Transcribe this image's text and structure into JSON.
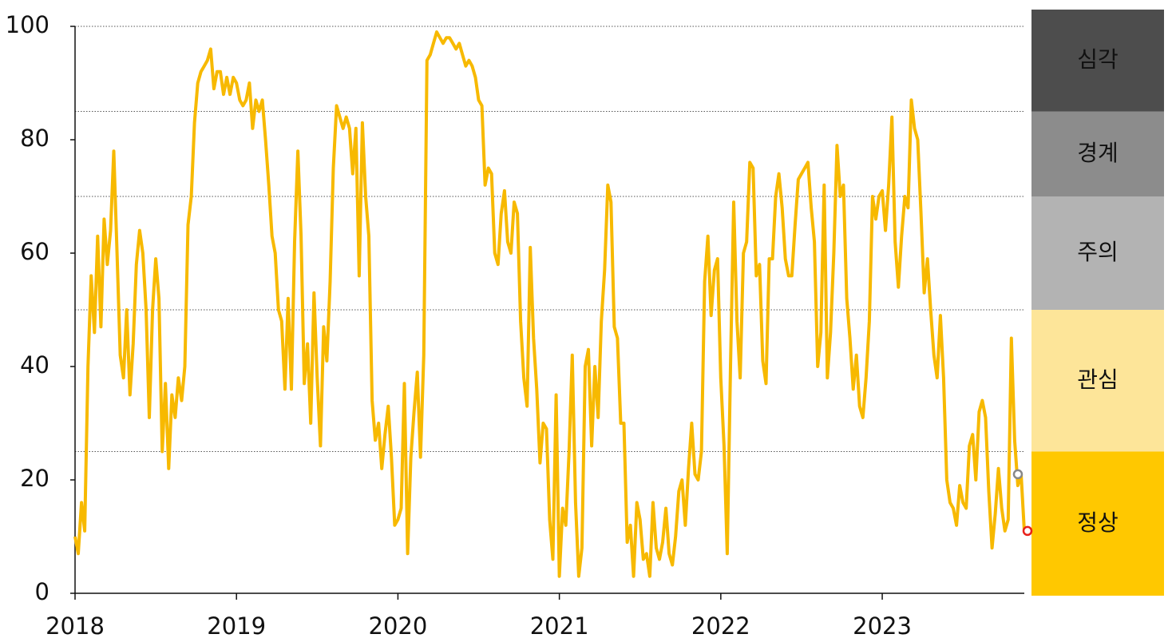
{
  "chart_data": {
    "type": "line",
    "x": [
      2018,
      2018.02,
      2018.04,
      2018.06,
      2018.08,
      2018.1,
      2018.12,
      2018.14,
      2018.16,
      2018.18,
      2018.2,
      2018.22,
      2018.24,
      2018.26,
      2018.28,
      2018.3,
      2018.32,
      2018.34,
      2018.36,
      2018.38,
      2018.4,
      2018.42,
      2018.44,
      2018.46,
      2018.48,
      2018.5,
      2018.52,
      2018.54,
      2018.56,
      2018.58,
      2018.6,
      2018.62,
      2018.64,
      2018.66,
      2018.68,
      2018.7,
      2018.72,
      2018.74,
      2018.76,
      2018.78,
      2018.8,
      2018.82,
      2018.84,
      2018.86,
      2018.88,
      2018.9,
      2018.92,
      2018.94,
      2018.96,
      2018.98,
      2019,
      2019.02,
      2019.04,
      2019.06,
      2019.08,
      2019.1,
      2019.12,
      2019.14,
      2019.16,
      2019.18,
      2019.2,
      2019.22,
      2019.24,
      2019.26,
      2019.28,
      2019.3,
      2019.32,
      2019.34,
      2019.36,
      2019.38,
      2019.4,
      2019.42,
      2019.44,
      2019.46,
      2019.48,
      2019.5,
      2019.52,
      2019.54,
      2019.56,
      2019.58,
      2019.6,
      2019.62,
      2019.64,
      2019.66,
      2019.68,
      2019.7,
      2019.72,
      2019.74,
      2019.76,
      2019.78,
      2019.8,
      2019.82,
      2019.84,
      2019.86,
      2019.88,
      2019.9,
      2019.92,
      2019.94,
      2019.96,
      2019.98,
      2020,
      2020.02,
      2020.04,
      2020.06,
      2020.08,
      2020.1,
      2020.12,
      2020.14,
      2020.16,
      2020.18,
      2020.2,
      2020.22,
      2020.24,
      2020.26,
      2020.28,
      2020.3,
      2020.32,
      2020.34,
      2020.36,
      2020.38,
      2020.4,
      2020.42,
      2020.44,
      2020.46,
      2020.48,
      2020.5,
      2020.52,
      2020.54,
      2020.56,
      2020.58,
      2020.6,
      2020.62,
      2020.64,
      2020.66,
      2020.68,
      2020.7,
      2020.72,
      2020.74,
      2020.76,
      2020.78,
      2020.8,
      2020.82,
      2020.84,
      2020.86,
      2020.88,
      2020.9,
      2020.92,
      2020.94,
      2020.96,
      2020.98,
      2021,
      2021.02,
      2021.04,
      2021.06,
      2021.08,
      2021.1,
      2021.12,
      2021.14,
      2021.16,
      2021.18,
      2021.2,
      2021.22,
      2021.24,
      2021.26,
      2021.28,
      2021.3,
      2021.32,
      2021.34,
      2021.36,
      2021.38,
      2021.4,
      2021.42,
      2021.44,
      2021.46,
      2021.48,
      2021.5,
      2021.52,
      2021.54,
      2021.56,
      2021.58,
      2021.6,
      2021.62,
      2021.64,
      2021.66,
      2021.68,
      2021.7,
      2021.72,
      2021.74,
      2021.76,
      2021.78,
      2021.8,
      2021.82,
      2021.84,
      2021.86,
      2021.88,
      2021.9,
      2021.92,
      2021.94,
      2021.96,
      2021.98,
      2022,
      2022.02,
      2022.04,
      2022.06,
      2022.08,
      2022.1,
      2022.12,
      2022.14,
      2022.16,
      2022.18,
      2022.2,
      2022.22,
      2022.24,
      2022.26,
      2022.28,
      2022.3,
      2022.32,
      2022.34,
      2022.36,
      2022.38,
      2022.4,
      2022.42,
      2022.44,
      2022.46,
      2022.48,
      2022.5,
      2022.52,
      2022.54,
      2022.56,
      2022.58,
      2022.6,
      2022.62,
      2022.64,
      2022.66,
      2022.68,
      2022.7,
      2022.72,
      2022.74,
      2022.76,
      2022.78,
      2022.8,
      2022.82,
      2022.84,
      2022.86,
      2022.88,
      2022.9,
      2022.92,
      2022.94,
      2022.96,
      2022.98,
      2023,
      2023.02,
      2023.04,
      2023.06,
      2023.08,
      2023.1,
      2023.12,
      2023.14,
      2023.16,
      2023.18,
      2023.2,
      2023.22,
      2023.24,
      2023.26,
      2023.28,
      2023.3,
      2023.32,
      2023.34,
      2023.36,
      2023.38,
      2023.4,
      2023.42,
      2023.44,
      2023.46,
      2023.48,
      2023.5,
      2023.52,
      2023.54,
      2023.56,
      2023.58,
      2023.6,
      2023.62,
      2023.64,
      2023.66,
      2023.68,
      2023.7,
      2023.72,
      2023.74,
      2023.76,
      2023.78,
      2023.8,
      2023.82,
      2023.84,
      2023.86,
      2023.88
    ],
    "series": [
      {
        "color": "#f7b900",
        "values": [
          10,
          7,
          16,
          11,
          40,
          56,
          46,
          63,
          47,
          66,
          58,
          64,
          78,
          60,
          42,
          38,
          50,
          35,
          44,
          58,
          64,
          60,
          50,
          31,
          50,
          59,
          52,
          25,
          37,
          22,
          35,
          31,
          38,
          34,
          40,
          65,
          70,
          83,
          90,
          92,
          93,
          94,
          96,
          89,
          92,
          92,
          88,
          91,
          88,
          91,
          90,
          87,
          86,
          87,
          90,
          82,
          87,
          85,
          87,
          80,
          72,
          63,
          60,
          50,
          48,
          36,
          52,
          36,
          62,
          78,
          63,
          37,
          44,
          30,
          53,
          38,
          26,
          47,
          41,
          55,
          75,
          86,
          84,
          82,
          84,
          82,
          74,
          82,
          56,
          83,
          70,
          63,
          34,
          27,
          30,
          22,
          28,
          33,
          24,
          12,
          13,
          15,
          37,
          7,
          24,
          32,
          39,
          24,
          42,
          94,
          95,
          97,
          99,
          98,
          97,
          98,
          98,
          97,
          96,
          97,
          95,
          93,
          94,
          93,
          91,
          87,
          86,
          72,
          75,
          74,
          60,
          58,
          67,
          71,
          62,
          60,
          69,
          67,
          48,
          38,
          33,
          61,
          45,
          36,
          23,
          30,
          29,
          13,
          6,
          35,
          3,
          15,
          12,
          25,
          42,
          16,
          3,
          8,
          40,
          43,
          26,
          40,
          31,
          48,
          57,
          72,
          69,
          47,
          45,
          30,
          30,
          9,
          12,
          3,
          16,
          13,
          6,
          7,
          3,
          16,
          8,
          6,
          9,
          15,
          7,
          5,
          10,
          18,
          20,
          12,
          22,
          30,
          21,
          20,
          25,
          55,
          63,
          49,
          57,
          59,
          38,
          26,
          7,
          40,
          69,
          48,
          38,
          60,
          62,
          76,
          75,
          56,
          58,
          41,
          37,
          59,
          59,
          70,
          74,
          68,
          59,
          56,
          56,
          65,
          73,
          74,
          75,
          76,
          68,
          62,
          40,
          46,
          72,
          38,
          46,
          60,
          79,
          70,
          72,
          52,
          45,
          36,
          42,
          33,
          31,
          38,
          48,
          70,
          66,
          70,
          71,
          64,
          72,
          84,
          62,
          54,
          63,
          70,
          68,
          87,
          82,
          80,
          67,
          53,
          59,
          50,
          42,
          38,
          49,
          38,
          20,
          16,
          15,
          12,
          19,
          16,
          15,
          26,
          28,
          20,
          32,
          34,
          31,
          18,
          8,
          14,
          22,
          15,
          11,
          13,
          45,
          27,
          19,
          21,
          11
        ]
      }
    ],
    "highlight_colors": [
      "#888888",
      "#e8221b"
    ],
    "zones": [
      {
        "label": "심각",
        "from": 85,
        "to": 100,
        "color": "#4d4d4d",
        "text_color": "#ffffff"
      },
      {
        "label": "경계",
        "from": 70,
        "to": 85,
        "color": "#8c8c8c",
        "text_color": "#ffffff"
      },
      {
        "label": "주의",
        "from": 50,
        "to": 70,
        "color": "#b3b3b3",
        "text_color": "#111111"
      },
      {
        "label": "관심",
        "from": 25,
        "to": 50,
        "color": "#fde599",
        "text_color": "#111111"
      },
      {
        "label": "정상",
        "from": 0,
        "to": 25,
        "color": "#ffc800",
        "text_color": "#111111"
      }
    ],
    "xlim": [
      2018,
      2023.88
    ],
    "xticks": [
      2018,
      2019,
      2020,
      2021,
      2022,
      2023
    ],
    "ylim": [
      0,
      100
    ],
    "yticks": [
      0,
      20,
      40,
      60,
      80,
      100
    ]
  }
}
